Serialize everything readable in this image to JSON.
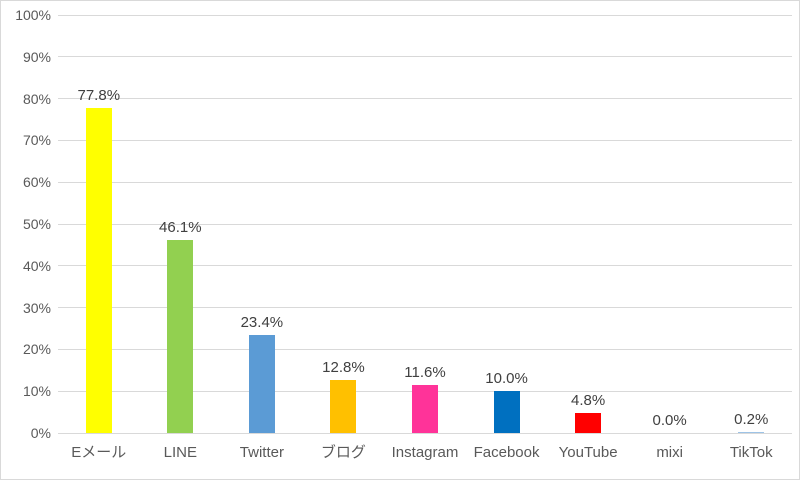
{
  "chart_data": {
    "type": "bar",
    "title": "",
    "xlabel": "",
    "ylabel": "",
    "ylim": [
      0,
      100
    ],
    "grid": true,
    "legend": "none",
    "y_ticks": [
      "0%",
      "10%",
      "20%",
      "30%",
      "40%",
      "50%",
      "60%",
      "70%",
      "80%",
      "90%",
      "100%"
    ],
    "y_tick_values": [
      0,
      10,
      20,
      30,
      40,
      50,
      60,
      70,
      80,
      90,
      100
    ],
    "categories": [
      "Eメール",
      "LINE",
      "Twitter",
      "ブログ",
      "Instagram",
      "Facebook",
      "YouTube",
      "mixi",
      "TikTok"
    ],
    "values": [
      77.8,
      46.1,
      23.4,
      12.8,
      11.6,
      10.0,
      4.8,
      0.0,
      0.2
    ],
    "data_labels": [
      "77.8%",
      "46.1%",
      "23.4%",
      "12.8%",
      "11.6%",
      "10.0%",
      "4.8%",
      "0.0%",
      "0.2%"
    ],
    "bar_colors": [
      "#FFFF00",
      "#92D050",
      "#5B9BD5",
      "#FFC000",
      "#FF3399",
      "#0070C0",
      "#FF0000",
      null,
      "#9DC3E6"
    ],
    "gridline_color": "#D9D9D9",
    "axis_label_color": "#595959",
    "data_label_color": "#404040"
  }
}
